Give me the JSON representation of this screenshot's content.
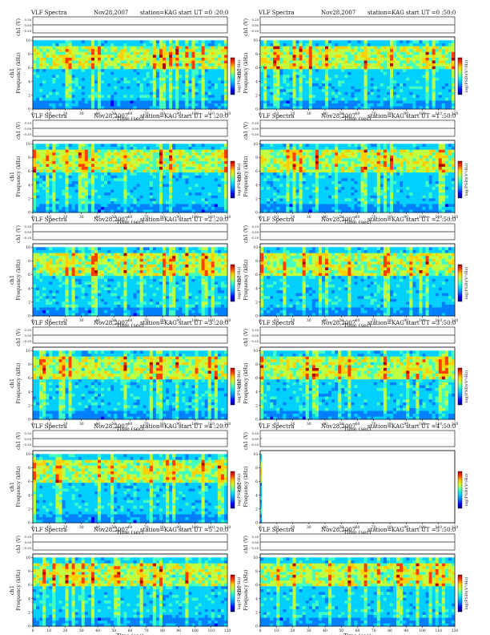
{
  "chart_data": {
    "type": "heatmap",
    "header": {
      "title": "VLF Spectra",
      "date": "Nov28,2007",
      "station": "station=KAG"
    },
    "xlabel": "Time (sec)",
    "ylabel_spec": "Frequency (kHz)",
    "ylabel_line": "ch1 (V)",
    "cbar_label": "log(PSD)(V²/Hz)",
    "side_label": "ch1",
    "xlim": [
      0,
      120
    ],
    "ylim": [
      0,
      10
    ],
    "xticks": [
      "0",
      "10",
      "20",
      "30",
      "40",
      "50",
      "60",
      "70",
      "80",
      "90",
      "100",
      "110",
      "120"
    ],
    "yticks": [
      "0",
      "2",
      "4",
      "6",
      "8",
      "10"
    ],
    "line_yticks": [
      "0.20",
      "0.00",
      "-0.20"
    ],
    "colormap": [
      "#00007f",
      "#0000ff",
      "#0080ff",
      "#00d0ff",
      "#40ffbf",
      "#bfff40",
      "#ffd000",
      "#ff4000",
      "#b00000"
    ],
    "panels": [
      {
        "start": "start  UT =0 :20:0",
        "data_until_sec": 120,
        "emission_band_khz": [
          6,
          9
        ]
      },
      {
        "start": "start  UT =0 :50:0",
        "data_until_sec": 120,
        "emission_band_khz": [
          6,
          9
        ]
      },
      {
        "start": "start  UT =1 :20:0",
        "data_until_sec": 120,
        "emission_band_khz": [
          6,
          9
        ]
      },
      {
        "start": "start  UT =1 :50:0",
        "data_until_sec": 120,
        "emission_band_khz": [
          6,
          9
        ]
      },
      {
        "start": "start  UT =2 :20:0",
        "data_until_sec": 120,
        "emission_band_khz": [
          6,
          9
        ]
      },
      {
        "start": "start  UT =2 :50:0",
        "data_until_sec": 120,
        "emission_band_khz": [
          6,
          9
        ]
      },
      {
        "start": "start  UT =3 :20:0",
        "data_until_sec": 120,
        "emission_band_khz": [
          6,
          9
        ]
      },
      {
        "start": "start  UT =3 :50:0",
        "data_until_sec": 120,
        "emission_band_khz": [
          6,
          9
        ]
      },
      {
        "start": "start  UT =4 :20:0",
        "data_until_sec": 120,
        "emission_band_khz": [
          6,
          9
        ]
      },
      {
        "start": "start  UT =4 :50:0",
        "data_until_sec": 1,
        "emission_band_khz": [
          6,
          9
        ]
      },
      {
        "start": "start  UT =5 :20:0",
        "data_until_sec": 120,
        "emission_band_khz": [
          6,
          9
        ]
      },
      {
        "start": "start  UT =5 :50:0",
        "data_until_sec": 120,
        "emission_band_khz": [
          6,
          9
        ]
      }
    ]
  }
}
